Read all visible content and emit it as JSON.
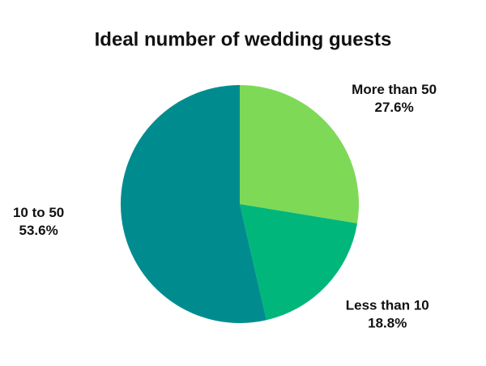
{
  "chart_data": {
    "type": "pie",
    "title": "Ideal number of wedding guests",
    "categories": [
      "More than 50",
      "Less than 10",
      "10 to 50"
    ],
    "values": [
      27.6,
      18.8,
      53.6
    ],
    "value_labels": [
      "27.6%",
      "18.8%",
      "53.6%"
    ],
    "colors": [
      "#7ed957",
      "#00b67a",
      "#008c8f"
    ]
  }
}
